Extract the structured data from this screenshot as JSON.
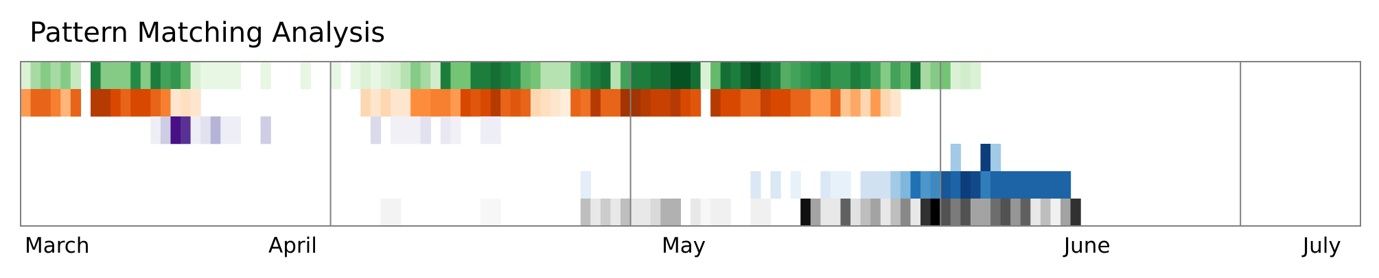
{
  "chart_data": {
    "type": "heatmap",
    "title": "Pattern Matching Analysis",
    "xlabel": "",
    "ylabel": "",
    "x_start": "2024-03-01",
    "x_end": "2024-07-12",
    "month_ticks": [
      {
        "label": "March",
        "date": "2024-03-01"
      },
      {
        "label": "April",
        "date": "2024-04-01"
      },
      {
        "label": "May",
        "date": "2024-05-01"
      },
      {
        "label": "June",
        "date": "2024-06-01"
      },
      {
        "label": "July",
        "date": "2024-07-01"
      }
    ],
    "series": [
      {
        "colormap": "Greens",
        "values": [
          0.15,
          0.35,
          0.45,
          0.35,
          0.45,
          0.25,
          0,
          0.8,
          0.45,
          0.45,
          0.45,
          0.75,
          0.45,
          0.8,
          0.65,
          0.7,
          0.55,
          0.15,
          0.08,
          0.08,
          0.08,
          0.08,
          0,
          0,
          0.08,
          0,
          0,
          0,
          0.08,
          0,
          0,
          0.08,
          0,
          0.08,
          0.15,
          0.08,
          0.15,
          0.2,
          0.3,
          0.45,
          0.35,
          0.2,
          0.8,
          0.5,
          0.5,
          0.8,
          0.8,
          0.85,
          0.8,
          0.75,
          0.55,
          0.5,
          0.3,
          0.3,
          0.3,
          0.6,
          0.7,
          0.8,
          0.85,
          0.3,
          0.65,
          0.8,
          0.8,
          0.85,
          0.85,
          0.95,
          0.95,
          0.85,
          0.15,
          0.55,
          0.85,
          0.8,
          0.9,
          0.95,
          0.85,
          0.8,
          0.6,
          0.65,
          0.7,
          0.75,
          0.8,
          0.7,
          0.7,
          0.8,
          0.75,
          0.65,
          0.45,
          0.65,
          0.55,
          0.85,
          0.35,
          0.45,
          0.5,
          0.15,
          0.2,
          0.15,
          0,
          0,
          0,
          0,
          0,
          0,
          0,
          0,
          0
        ]
      },
      {
        "colormap": "Oranges",
        "values": [
          0.45,
          0.65,
          0.65,
          0.55,
          0.35,
          0.65,
          0,
          0.85,
          0.85,
          0.75,
          0.65,
          0.75,
          0.75,
          0.65,
          0.55,
          0.1,
          0.15,
          0.1,
          0,
          0,
          0,
          0,
          0,
          0,
          0,
          0,
          0,
          0,
          0,
          0,
          0,
          0,
          0,
          0,
          0.2,
          0.1,
          0.2,
          0.1,
          0.1,
          0.5,
          0.5,
          0.55,
          0.55,
          0.45,
          0.75,
          0.7,
          0.75,
          0.85,
          0.65,
          0.7,
          0.65,
          0.2,
          0.15,
          0.1,
          0.05,
          0.65,
          0.6,
          0.85,
          0.65,
          0.65,
          0.9,
          0.9,
          0.85,
          0.8,
          0.8,
          0.85,
          0.75,
          0.7,
          0,
          0.85,
          0.75,
          0.75,
          0.65,
          0.65,
          0.8,
          0.75,
          0.75,
          0.65,
          0.65,
          0.45,
          0.45,
          0.65,
          0.3,
          0.4,
          0.2,
          0.45,
          0.2,
          0.1,
          0,
          0,
          0,
          0,
          0,
          0,
          0,
          0,
          0,
          0,
          0,
          0,
          0,
          0,
          0,
          0,
          0,
          0,
          0,
          0
        ]
      },
      {
        "colormap": "Purples",
        "values": [
          0,
          0,
          0,
          0,
          0,
          0,
          0,
          0,
          0,
          0,
          0,
          0,
          0,
          0.1,
          0.3,
          0.95,
          0.85,
          0.1,
          0.2,
          0.4,
          0.1,
          0.1,
          0,
          0,
          0.3,
          0,
          0,
          0,
          0,
          0,
          0,
          0,
          0,
          0,
          0,
          0.25,
          0,
          0.08,
          0.08,
          0.08,
          0.2,
          0,
          0.15,
          0.08,
          0,
          0,
          0.1,
          0.1,
          0,
          0,
          0,
          0,
          0,
          0,
          0,
          0,
          0,
          0,
          0,
          0,
          0,
          0,
          0,
          0,
          0,
          0,
          0,
          0,
          0,
          0,
          0,
          0,
          0,
          0,
          0,
          0,
          0,
          0,
          0,
          0,
          0,
          0,
          0,
          0,
          0,
          0,
          0,
          0,
          0,
          0,
          0,
          0,
          0,
          0,
          0,
          0,
          0,
          0,
          0,
          0,
          0,
          0,
          0,
          0,
          0,
          0,
          0,
          0,
          0,
          0
        ]
      },
      {
        "colormap": "Blues_top",
        "values": [
          0,
          0,
          0,
          0,
          0,
          0,
          0,
          0,
          0,
          0,
          0,
          0,
          0,
          0,
          0,
          0,
          0,
          0,
          0,
          0,
          0,
          0,
          0,
          0,
          0,
          0,
          0,
          0,
          0,
          0,
          0,
          0,
          0,
          0,
          0,
          0,
          0,
          0,
          0,
          0,
          0,
          0,
          0,
          0,
          0,
          0,
          0,
          0,
          0,
          0,
          0,
          0,
          0,
          0,
          0,
          0,
          0,
          0,
          0,
          0,
          0,
          0,
          0,
          0,
          0,
          0,
          0,
          0,
          0,
          0,
          0,
          0,
          0,
          0,
          0,
          0,
          0,
          0,
          0,
          0,
          0,
          0,
          0,
          0,
          0,
          0,
          0,
          0,
          0,
          0,
          0,
          0,
          0,
          0.35,
          0,
          0,
          0.95,
          0.35,
          0,
          0,
          0,
          0,
          0,
          0,
          0,
          0,
          0,
          0,
          0,
          0,
          0
        ]
      },
      {
        "colormap": "Blues",
        "values": [
          0,
          0,
          0,
          0,
          0,
          0,
          0,
          0,
          0,
          0,
          0,
          0,
          0,
          0,
          0,
          0,
          0,
          0,
          0,
          0,
          0,
          0,
          0,
          0,
          0,
          0,
          0,
          0,
          0,
          0,
          0,
          0,
          0,
          0,
          0,
          0,
          0,
          0,
          0,
          0,
          0,
          0,
          0,
          0,
          0,
          0,
          0,
          0,
          0,
          0,
          0,
          0,
          0,
          0,
          0,
          0,
          0.1,
          0,
          0,
          0,
          0,
          0,
          0,
          0,
          0,
          0,
          0,
          0,
          0,
          0,
          0,
          0,
          0,
          0.15,
          0,
          0.15,
          0,
          0.08,
          0,
          0,
          0.15,
          0.08,
          0.08,
          0,
          0.2,
          0.2,
          0.2,
          0.35,
          0.45,
          0.75,
          0.6,
          0.65,
          0.85,
          0.8,
          0.95,
          0.9,
          0.7,
          0.8,
          0.8,
          0.8,
          0.8,
          0.8,
          0.8,
          0.8,
          0.8
        ]
      },
      {
        "colormap": "Greys",
        "values": [
          0,
          0,
          0,
          0,
          0,
          0,
          0,
          0,
          0,
          0,
          0,
          0,
          0,
          0,
          0,
          0,
          0,
          0,
          0,
          0,
          0,
          0,
          0,
          0,
          0,
          0,
          0,
          0,
          0,
          0,
          0,
          0,
          0,
          0,
          0,
          0,
          0.08,
          0.08,
          0,
          0,
          0,
          0,
          0,
          0,
          0,
          0,
          0.05,
          0.05,
          0,
          0,
          0,
          0,
          0,
          0,
          0,
          0,
          0.35,
          0.15,
          0.3,
          0.15,
          0.35,
          0.15,
          0.15,
          0.25,
          0.4,
          0.4,
          0,
          0.15,
          0.05,
          0.1,
          0.1,
          0,
          0,
          0.1,
          0.1,
          0,
          0,
          0,
          0.95,
          0.45,
          0.15,
          0.15,
          0.7,
          0.2,
          0.35,
          0.45,
          0.15,
          0.35,
          0.55,
          0.15,
          0.85,
          1,
          0.75,
          0.6,
          0.75,
          0.45,
          0.45,
          0.65,
          0.75,
          0.5,
          0.7,
          0.15,
          0.35,
          0.1,
          0.45,
          0.85
        ]
      }
    ],
    "grid": false
  }
}
